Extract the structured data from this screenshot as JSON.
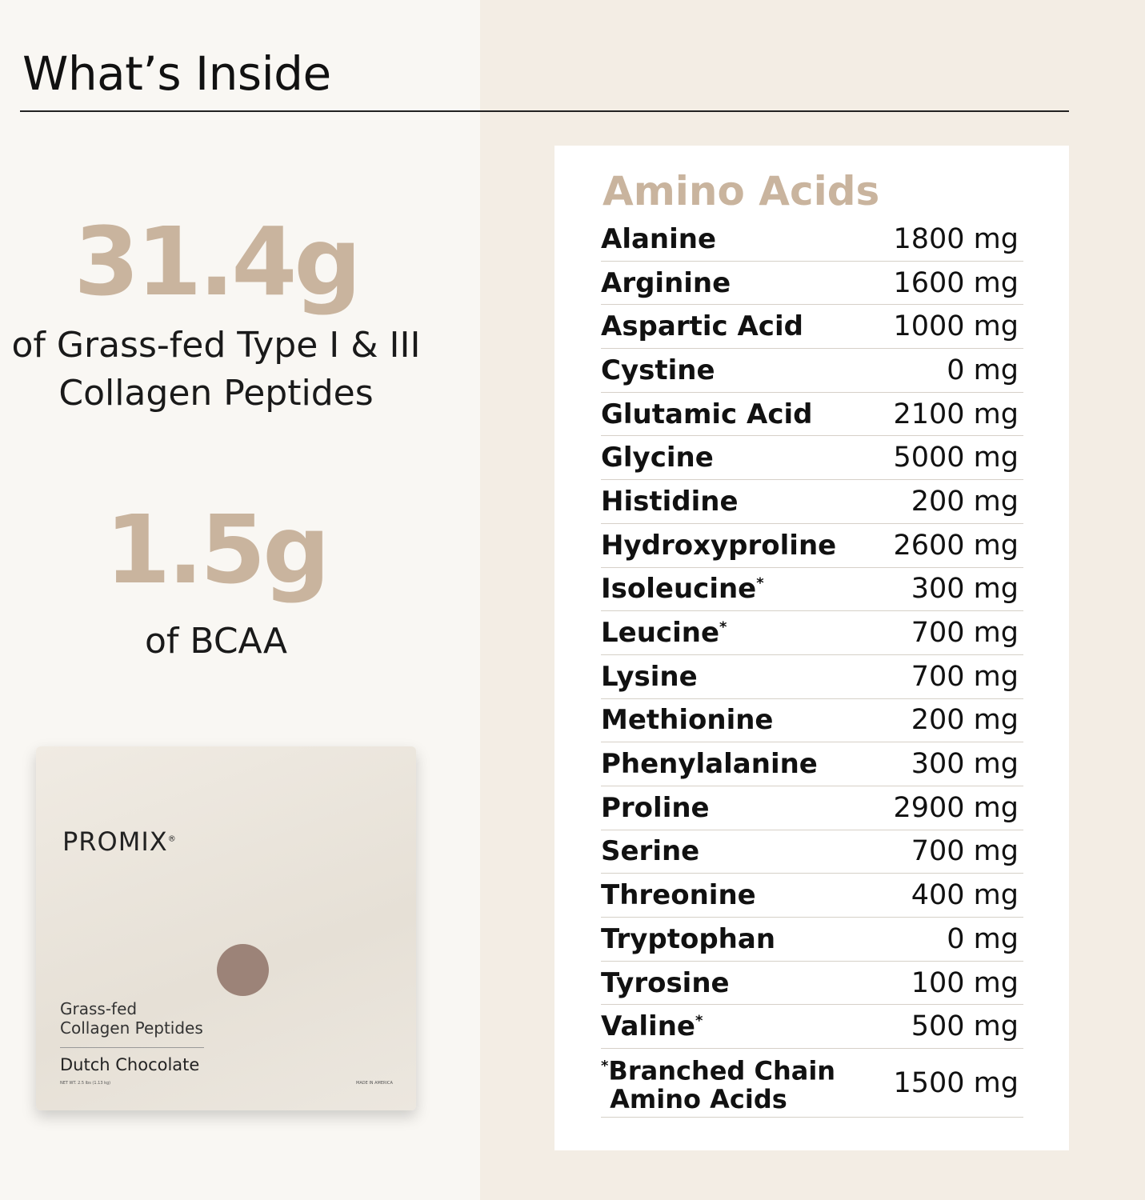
{
  "title": "What’s Inside",
  "stats": [
    {
      "value": "31.4g",
      "label_line1": "of Grass-fed Type I & III",
      "label_line2": "Collagen Peptides"
    },
    {
      "value": "1.5g",
      "label_line1": "of BCAA"
    }
  ],
  "product": {
    "brand": "PROMIX",
    "reg": "®",
    "line1": "Grass-fed",
    "line2": "Collagen Peptides",
    "flavor": "Dutch Chocolate",
    "net_wt": "NET WT. 2.5 lbs (1.13 kg)",
    "origin": "MADE IN AMERICA"
  },
  "table": {
    "heading": "Amino Acids",
    "rows": [
      {
        "name": "Alanine",
        "value": "1800 mg"
      },
      {
        "name": "Arginine",
        "value": "1600 mg"
      },
      {
        "name": "Aspartic Acid",
        "value": "1000 mg"
      },
      {
        "name": "Cystine",
        "value": "0 mg"
      },
      {
        "name": "Glutamic Acid",
        "value": "2100 mg"
      },
      {
        "name": "Glycine",
        "value": "5000 mg"
      },
      {
        "name": "Histidine",
        "value": "200 mg"
      },
      {
        "name": "Hydroxyproline",
        "value": "2600 mg"
      },
      {
        "name": "Isoleucine",
        "mark": "*",
        "value": "300 mg"
      },
      {
        "name": "Leucine",
        "mark": "*",
        "value": "700 mg"
      },
      {
        "name": "Lysine",
        "value": "700 mg"
      },
      {
        "name": "Methionine",
        "value": "200 mg"
      },
      {
        "name": "Phenylalanine",
        "value": "300 mg"
      },
      {
        "name": "Proline",
        "value": "2900 mg"
      },
      {
        "name": "Serine",
        "value": "700 mg"
      },
      {
        "name": "Threonine",
        "value": "400 mg"
      },
      {
        "name": "Tryptophan",
        "value": "0 mg"
      },
      {
        "name": "Tyrosine",
        "value": "100 mg"
      },
      {
        "name": "Valine",
        "mark": "*",
        "value": "500 mg"
      }
    ],
    "footnote": {
      "mark": "*",
      "line1": "Branched Chain",
      "line2": "Amino Acids",
      "value": "1500 mg"
    }
  },
  "colors": {
    "accent": "#c9b49e",
    "left_bg": "#f9f7f3",
    "right_bg": "#f3ede4"
  }
}
